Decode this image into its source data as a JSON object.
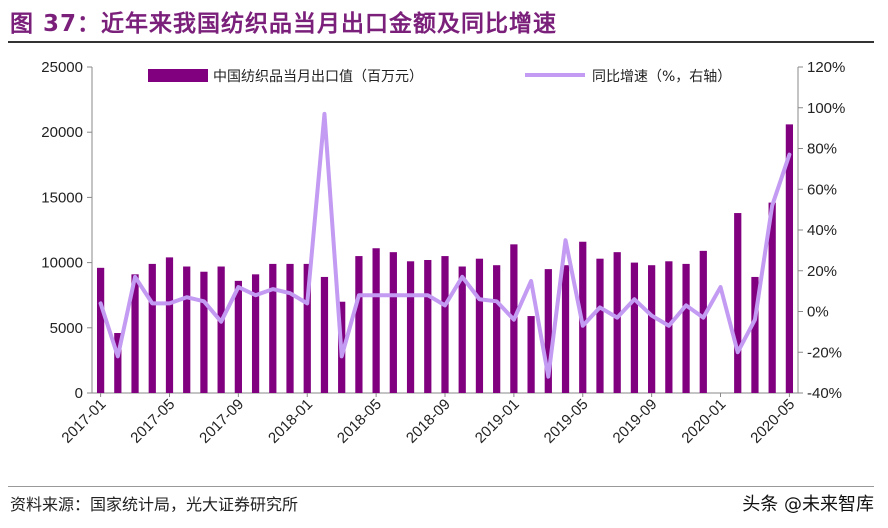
{
  "header": {
    "title": "图 37：近年来我国纺织品当月出口金额及同比增速"
  },
  "footer": {
    "source": "资料来源：国家统计局，光大证券研究所",
    "watermark": "头条 @未来智库"
  },
  "colors": {
    "bar": "#800080",
    "line": "#c39bf2",
    "title": "#7a1f7a"
  },
  "chart_data": {
    "type": "bar+line",
    "title": "",
    "legend": [
      "中国纺织品当月出口值（百万元）",
      "同比增速（%，右轴）"
    ],
    "legend_placement": "top",
    "grid": false,
    "x_tick_labels": [
      "2017-01",
      "2017-05",
      "2017-09",
      "2018-01",
      "2018-05",
      "2018-09",
      "2019-01",
      "2019-05",
      "2019-09",
      "2020-01",
      "2020-05"
    ],
    "left_axis": {
      "ylim": [
        0,
        25000
      ],
      "ticks": [
        "0",
        "5000",
        "10000",
        "15000",
        "20000",
        "25000"
      ]
    },
    "right_axis": {
      "ylim": [
        -40,
        120
      ],
      "ticks": [
        "-40%",
        "-20%",
        "0%",
        "20%",
        "40%",
        "60%",
        "80%",
        "100%",
        "120%"
      ]
    },
    "categories": [
      "2017-01",
      "2017-02",
      "2017-03",
      "2017-04",
      "2017-05",
      "2017-06",
      "2017-07",
      "2017-08",
      "2017-09",
      "2017-10",
      "2017-11",
      "2017-12",
      "2018-01",
      "2018-02",
      "2018-03",
      "2018-04",
      "2018-05",
      "2018-06",
      "2018-07",
      "2018-08",
      "2018-09",
      "2018-10",
      "2018-11",
      "2018-12",
      "2019-01",
      "2019-02",
      "2019-03",
      "2019-04",
      "2019-05",
      "2019-06",
      "2019-07",
      "2019-08",
      "2019-09",
      "2019-10",
      "2019-11",
      "2019-12",
      "2020-01",
      "2020-02",
      "2020-03",
      "2020-04",
      "2020-05"
    ],
    "series": [
      {
        "name": "中国纺织品当月出口值（百万元）",
        "kind": "bar",
        "axis": "left",
        "values": [
          9600,
          4600,
          9100,
          9900,
          10400,
          9700,
          9300,
          9700,
          8600,
          9100,
          9900,
          9900,
          9900,
          8900,
          7000,
          10500,
          11100,
          10800,
          10100,
          10200,
          10500,
          9700,
          10300,
          9800,
          11400,
          5900,
          9500,
          9800,
          11600,
          10300,
          10800,
          10000,
          9800,
          10100,
          9900,
          10900,
          null,
          13800,
          8900,
          14600,
          20600
        ]
      },
      {
        "name": "同比增速（%，右轴）",
        "kind": "line",
        "axis": "right",
        "values": [
          4,
          -22,
          17,
          4,
          4,
          7,
          5,
          -5,
          12,
          8,
          11,
          9,
          4,
          97,
          -22,
          8,
          8,
          8,
          8,
          8,
          3,
          17,
          6,
          5,
          -4,
          15,
          -32,
          35,
          -7,
          2,
          -3,
          6,
          -2,
          -7,
          3,
          -3,
          12,
          -20,
          -4,
          52,
          77
        ]
      }
    ]
  }
}
